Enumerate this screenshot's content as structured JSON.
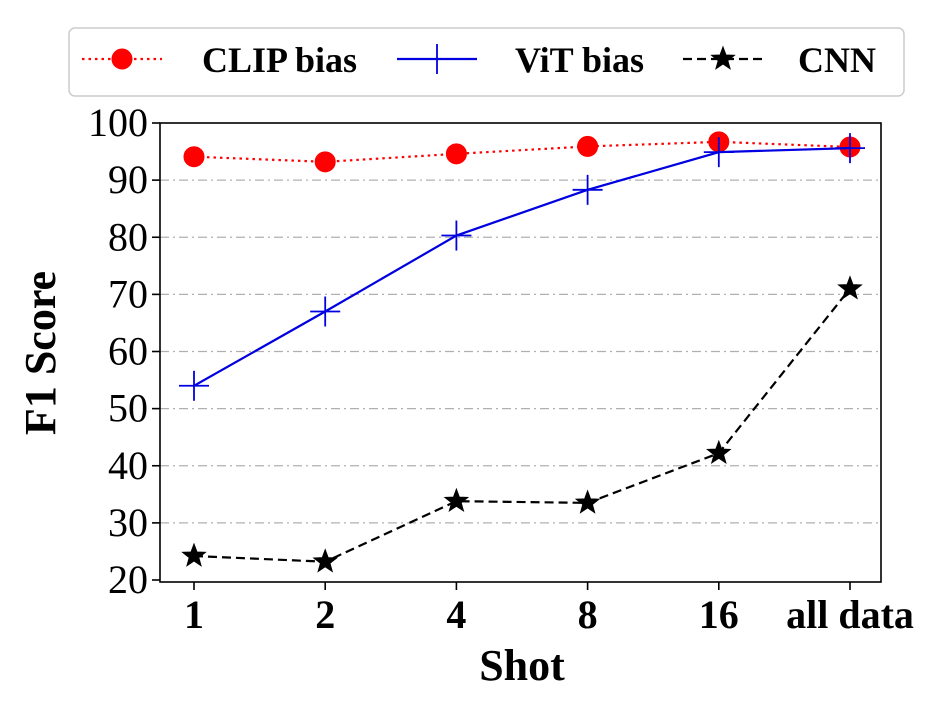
{
  "chart_data": {
    "type": "line",
    "title": "",
    "xlabel": "Shot",
    "ylabel": "F1 Score",
    "categories": [
      "1",
      "2",
      "4",
      "8",
      "16",
      "all data"
    ],
    "ylim": [
      20,
      100
    ],
    "yticks": [
      20,
      30,
      40,
      50,
      60,
      70,
      80,
      90,
      100
    ],
    "grid": "y-dashdot",
    "legend_position": "top",
    "series": [
      {
        "name": "CLIP bias",
        "values": [
          94.1,
          93.2,
          94.6,
          95.9,
          96.7,
          95.8
        ],
        "color": "#ff0000",
        "line": "dotted",
        "marker": "circle"
      },
      {
        "name": "ViT bias",
        "values": [
          54.0,
          67.0,
          80.3,
          88.3,
          94.9,
          95.6
        ],
        "color": "#0000e0",
        "line": "solid",
        "marker": "plus"
      },
      {
        "name": "CNN",
        "values": [
          24.2,
          23.2,
          33.8,
          33.5,
          42.2,
          71.0
        ],
        "color": "#000000",
        "line": "dashed",
        "marker": "star"
      }
    ]
  }
}
